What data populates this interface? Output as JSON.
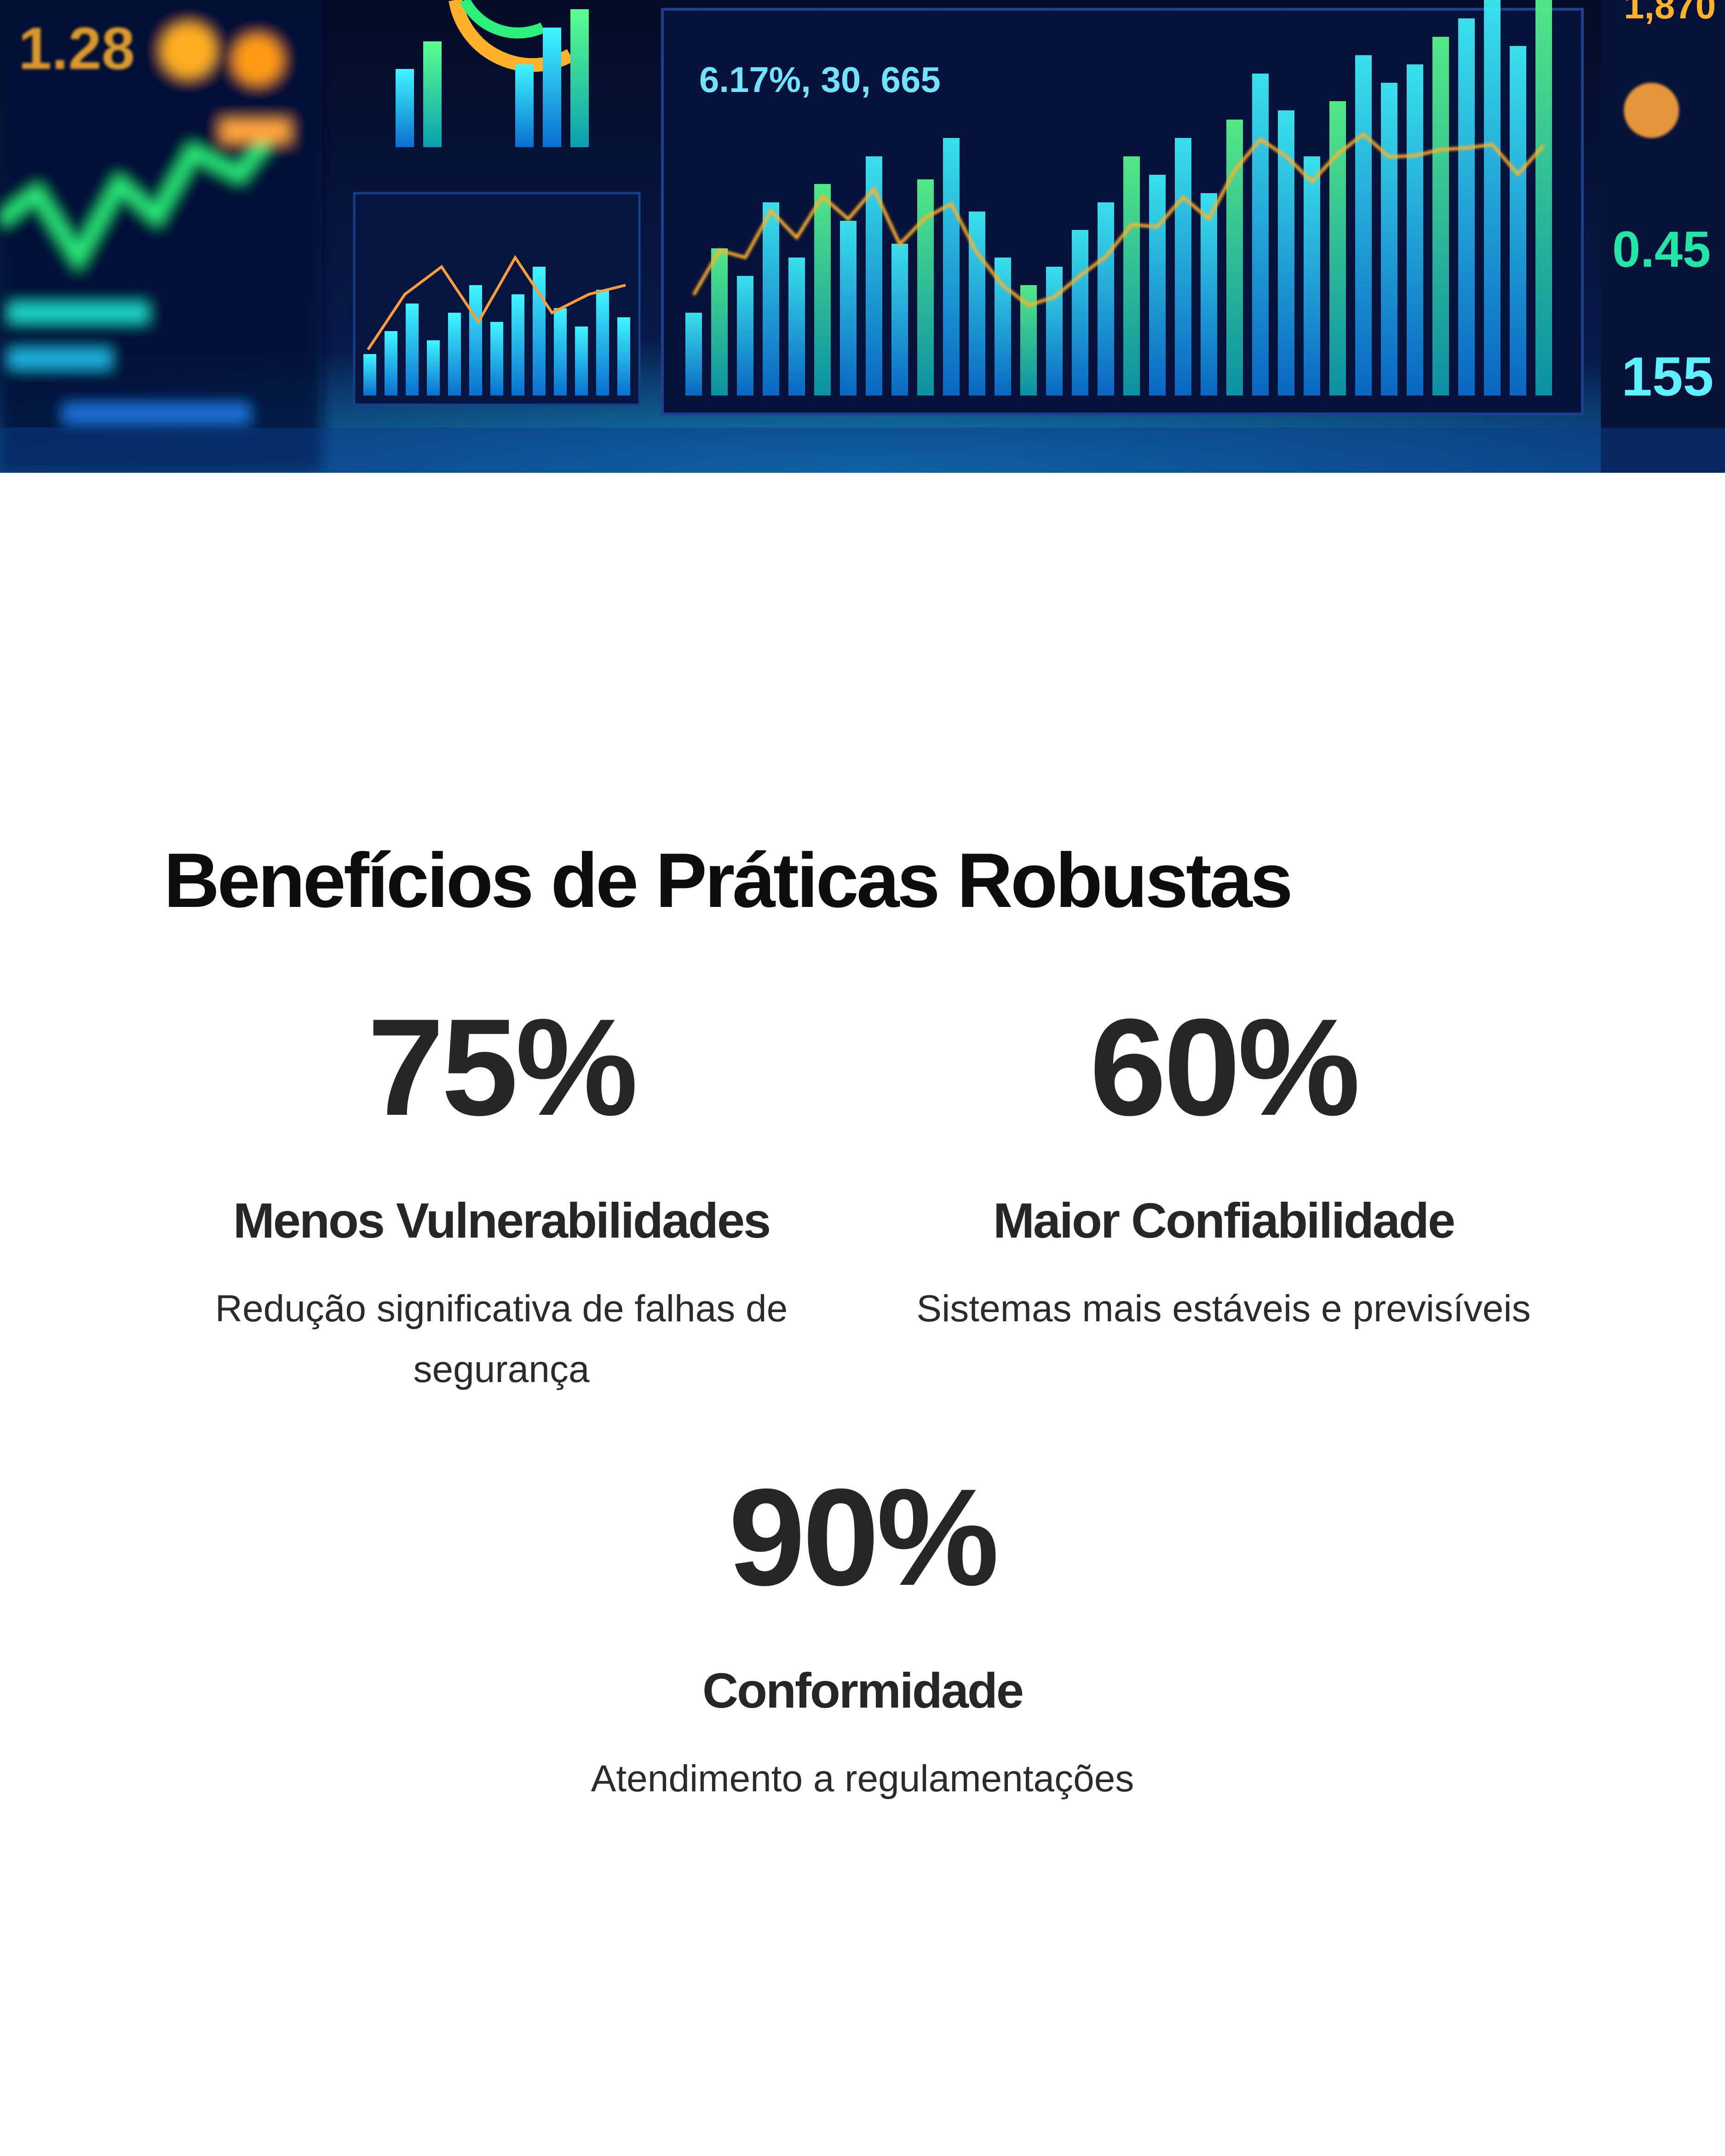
{
  "hero": {
    "readout_top": "6.17%, 30, 665",
    "readout_right_a": "0.45",
    "readout_right_b": "155",
    "readout_left": "1.28",
    "readout_corner": "1,870",
    "colors": {
      "background": "#030a22",
      "cyan": "#16e0ff",
      "green": "#2cf07a",
      "amber": "#ffb12a"
    }
  },
  "section": {
    "title": "Benefícios de Práticas Robustas"
  },
  "stats": [
    {
      "value": "75%",
      "label": "Menos Vulnerabilidades",
      "description": "Redução significativa de falhas de segurança"
    },
    {
      "value": "60%",
      "label": "Maior Confiabilidade",
      "description": "Sistemas mais estáveis e previsíveis"
    },
    {
      "value": "90%",
      "label": "Conformidade",
      "description": "Atendimento a regulamentações"
    }
  ]
}
